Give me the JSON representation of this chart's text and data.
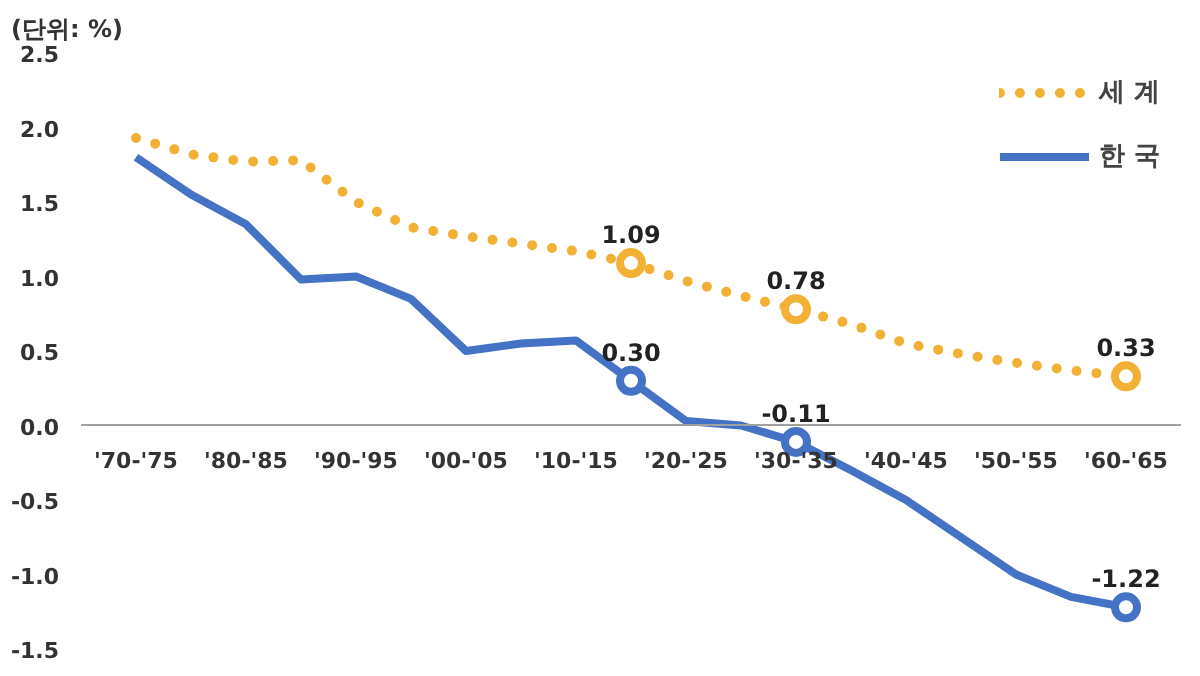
{
  "chart_data": {
    "type": "line",
    "ylabel": "(단위: %)",
    "categories": [
      "'70-'75",
      null,
      "'80-'85",
      null,
      "'90-'95",
      null,
      "'00-'05",
      null,
      "'10-'15",
      null,
      "'20-'25",
      null,
      "'30-'35",
      null,
      "'40-'45",
      null,
      "'50-'55",
      null,
      "'60-'65"
    ],
    "series": [
      {
        "name": "세 계",
        "color": "#f2b134",
        "line_style": "dotted",
        "values": [
          1.93,
          1.82,
          1.77,
          1.78,
          1.5,
          1.33,
          1.27,
          1.22,
          1.17,
          1.09,
          0.97,
          0.87,
          0.78,
          0.68,
          0.55,
          0.48,
          0.42,
          0.37,
          0.33
        ],
        "value_labels": [
          null,
          null,
          null,
          null,
          null,
          null,
          null,
          null,
          null,
          "1.09",
          null,
          null,
          "0.78",
          null,
          null,
          null,
          null,
          null,
          "0.33"
        ]
      },
      {
        "name": "한 국",
        "color": "#4472c4",
        "line_style": "solid",
        "values": [
          1.8,
          1.55,
          1.35,
          0.98,
          1.0,
          0.85,
          0.5,
          0.55,
          0.57,
          0.3,
          0.03,
          0.0,
          -0.11,
          -0.3,
          -0.5,
          -0.75,
          -1.0,
          -1.15,
          -1.22
        ],
        "value_labels": [
          null,
          null,
          null,
          null,
          null,
          null,
          null,
          null,
          null,
          "0.30",
          null,
          null,
          "-0.11",
          null,
          null,
          null,
          null,
          null,
          "-1.22"
        ]
      }
    ],
    "ylim": [
      -1.5,
      2.5
    ],
    "yticks": [
      {
        "value": 2.5,
        "label": "2.5"
      },
      {
        "value": 2.0,
        "label": "2.0"
      },
      {
        "value": 1.5,
        "label": "1.5"
      },
      {
        "value": 1.0,
        "label": "1.0"
      },
      {
        "value": 0.5,
        "label": "0.5"
      },
      {
        "value": 0.0,
        "label": "0.0"
      },
      {
        "value": -0.5,
        "label": "-0.5"
      },
      {
        "value": -1.0,
        "label": "-1.0"
      },
      {
        "value": -1.5,
        "label": "-1.5"
      }
    ],
    "grid": false,
    "legend": "top right"
  }
}
